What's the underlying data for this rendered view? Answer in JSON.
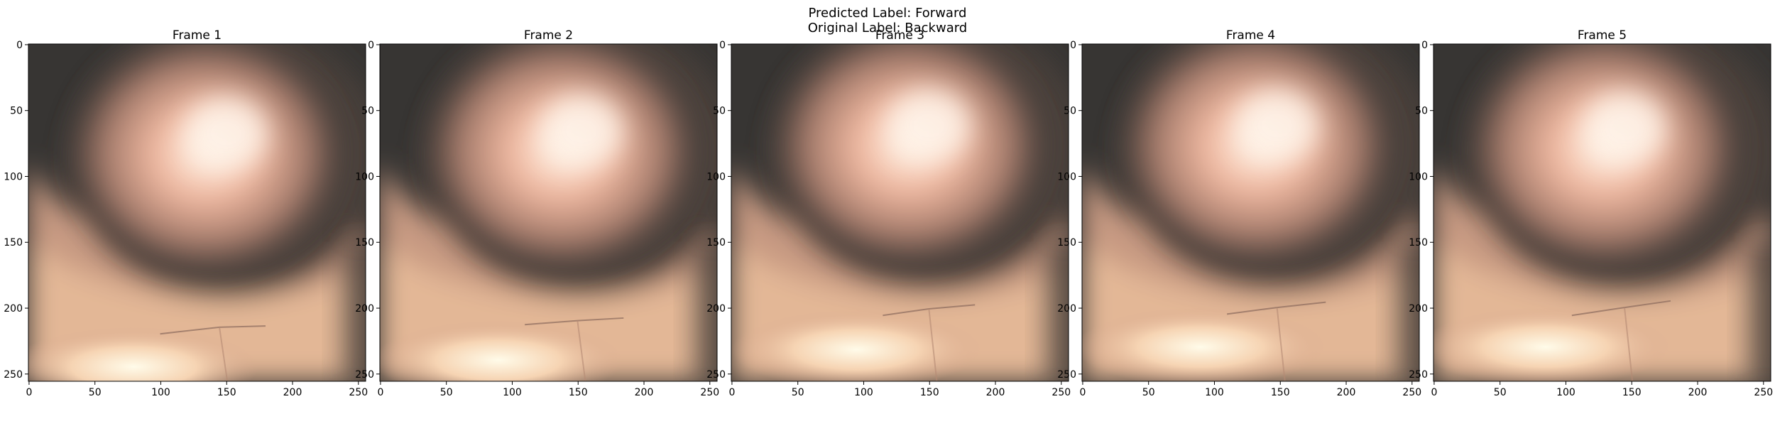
{
  "figure": {
    "suptitle_line1": "Predicted Label: Forward",
    "suptitle_line2": "Original Label: Backward"
  },
  "axes": {
    "x_ticks": [
      "0",
      "50",
      "100",
      "150",
      "200",
      "250"
    ],
    "y_ticks": [
      "0",
      "50",
      "100",
      "150",
      "200",
      "250"
    ]
  },
  "frames": [
    {
      "title": "Frame 1",
      "blob": [
        150,
        68
      ],
      "crease": [
        [
          100,
          220
        ],
        [
          145,
          215
        ],
        [
          180,
          214
        ]
      ],
      "floor": [
        80,
        245
      ]
    },
    {
      "title": "Frame 2",
      "blob": [
        153,
        66
      ],
      "crease": [
        [
          110,
          213
        ],
        [
          150,
          210
        ],
        [
          185,
          208
        ]
      ],
      "floor": [
        90,
        240
      ]
    },
    {
      "title": "Frame 3",
      "blob": [
        150,
        62
      ],
      "crease": [
        [
          115,
          206
        ],
        [
          150,
          201
        ],
        [
          185,
          198
        ]
      ],
      "floor": [
        95,
        232
      ]
    },
    {
      "title": "Frame 4",
      "blob": [
        148,
        62
      ],
      "crease": [
        [
          110,
          205
        ],
        [
          148,
          200
        ],
        [
          185,
          196
        ]
      ],
      "floor": [
        90,
        230
      ]
    },
    {
      "title": "Frame 5",
      "blob": [
        145,
        64
      ],
      "crease": [
        [
          105,
          206
        ],
        [
          145,
          200
        ],
        [
          180,
          195
        ]
      ],
      "floor": [
        85,
        230
      ]
    }
  ]
}
